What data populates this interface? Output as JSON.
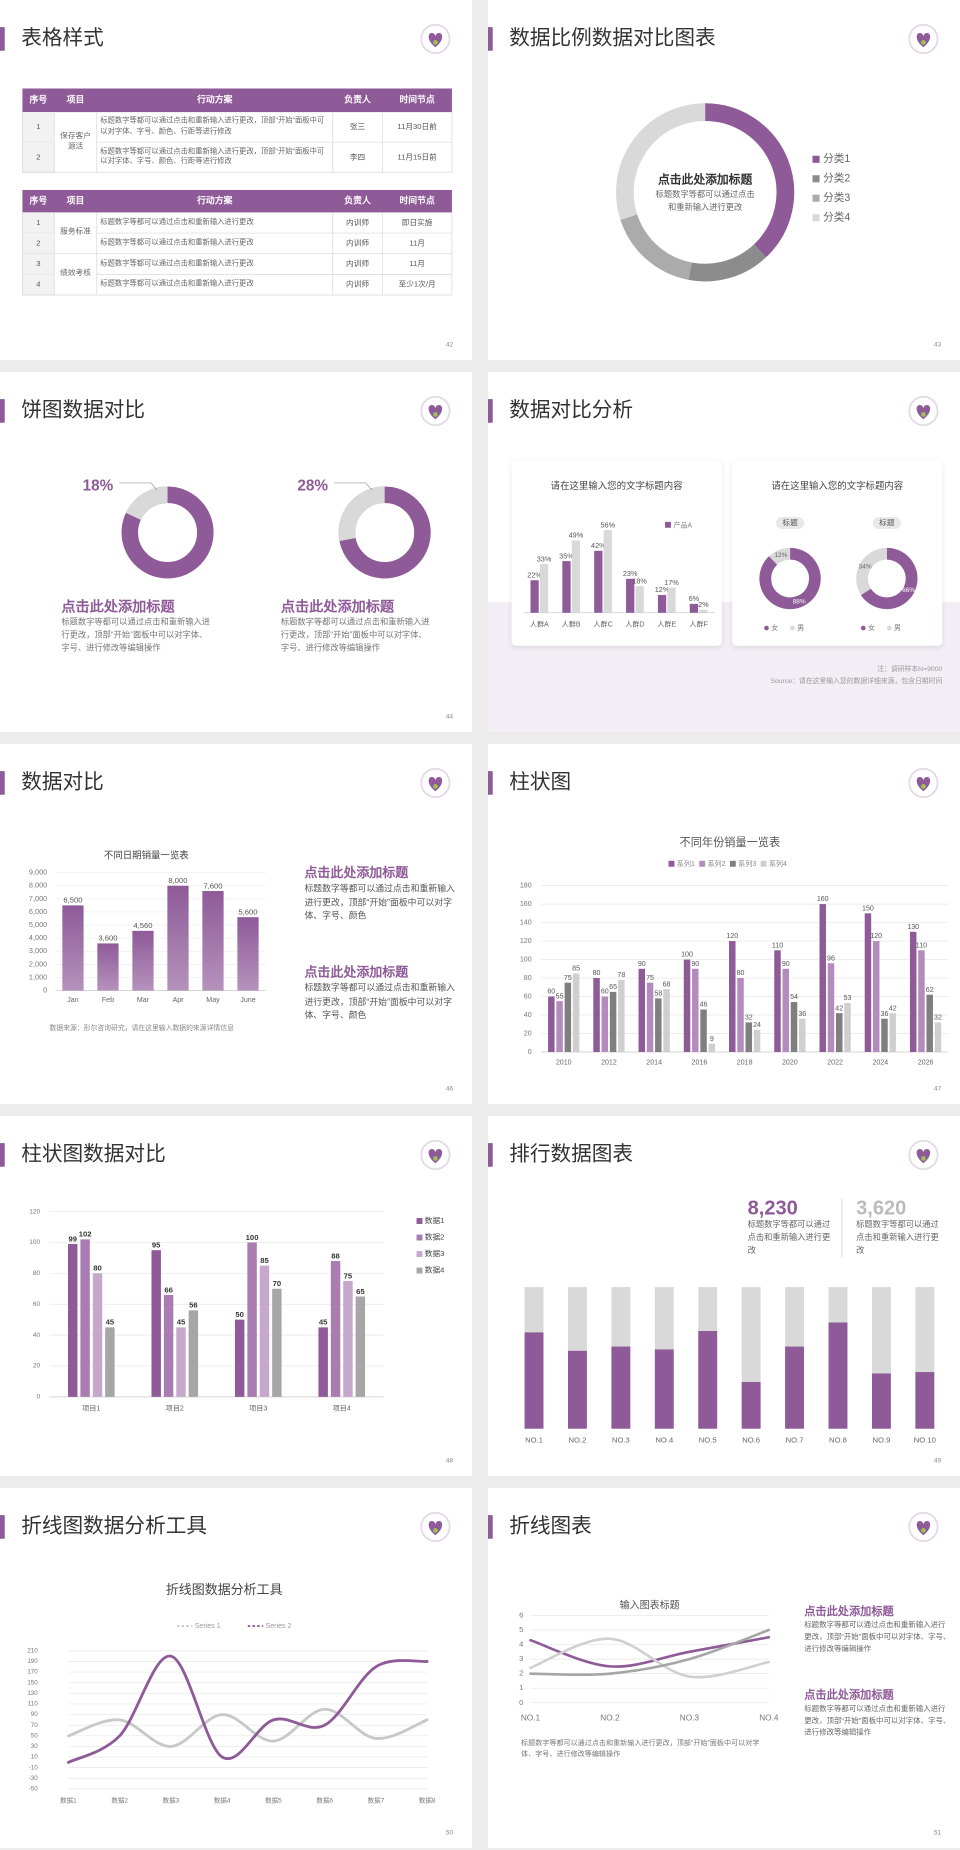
{
  "slides": [
    {
      "title": "表格样式",
      "page": "42",
      "tables": [
        {
          "header": [
            "序号",
            "项目",
            "行动方案",
            "负责人",
            "时间节点"
          ],
          "groups": [
            {
              "project": "保存客户源活",
              "rows": [
                [
                  "1",
                  "标题数字等都可以通过点击和重新输入进行更改，顶部“开始”面板中可以对字体、字号、颜色、行距等进行修改",
                  "张三",
                  "11月30日前"
                ],
                [
                  "2",
                  "标题数字等都可以通过点击和重新输入进行更改，顶部“开始”面板中可以对字体、字号、颜色、行距等进行修改",
                  "李四",
                  "11月15日前"
                ]
              ]
            }
          ]
        },
        {
          "header": [
            "序号",
            "项目",
            "行动方案",
            "负责人",
            "时间节点"
          ],
          "groups": [
            {
              "project": "服务标准",
              "rows": [
                [
                  "1",
                  "标题数字等都可以通过点击和重新输入进行更改",
                  "内训师",
                  "即日实施"
                ],
                [
                  "2",
                  "标题数字等都可以通过点击和重新输入进行更改",
                  "内训师",
                  "11月"
                ]
              ]
            },
            {
              "project": "绩效考核",
              "rows": [
                [
                  "3",
                  "标题数字等都可以通过点击和重新输入进行更改",
                  "内训师",
                  "11月"
                ],
                [
                  "4",
                  "标题数字等都可以通过点击和重新输入进行更改",
                  "内训师",
                  "至少1次/月"
                ]
              ]
            }
          ]
        }
      ]
    },
    {
      "title": "数据比例数据对比图表",
      "page": "43",
      "chart_data": {
        "type": "donut",
        "center_title": "点击此处添加标题",
        "center_text": "标题数字等都可以通过点击和重新输入进行更改",
        "categories": [
          "分类1",
          "分类2",
          "分类3",
          "分类4"
        ],
        "values": [
          38,
          15,
          17,
          30
        ],
        "colors": [
          "#8e5a98",
          "#8c8c8c",
          "#ababab",
          "#d9d9d9"
        ]
      }
    },
    {
      "title": "饼图数据对比",
      "page": "44",
      "items": [
        {
          "chart_data": {
            "type": "donut",
            "values": [
              18
            ],
            "value_labels": [
              "18%"
            ],
            "color": "#d9d9d9",
            "ring_color": "#8e5a98"
          },
          "heading": "点击此处添加标题",
          "text": "标题数字等都可以通过点击和重新输入进行更改，顶部“开始”面板中可以对字体、字号、进行修改等编辑操作"
        },
        {
          "chart_data": {
            "type": "donut",
            "values": [
              28
            ],
            "value_labels": [
              "28%"
            ],
            "color": "#d9d9d9",
            "ring_color": "#8e5a98"
          },
          "heading": "点击此处添加标题",
          "text": "标题数字等都可以通过点击和重新输入进行更改，顶部“开始”面板中可以对字体、字号、进行修改等编辑操作"
        }
      ]
    },
    {
      "title": "数据对比分析",
      "page": "45",
      "cards": [
        {
          "title": "请在这里输入您的文字标题内容",
          "chart_data": {
            "type": "bar",
            "categories": [
              "人群A",
              "人群B",
              "人群C",
              "人群D",
              "人群E",
              "人群F"
            ],
            "series": [
              {
                "name": "产品A",
                "color": "#8e5a98",
                "values": [
                  22,
                  35,
                  42,
                  23,
                  12,
                  6
                ],
                "value_labels": [
                  "22%",
                  "35%",
                  "42%",
                  "23%",
                  "12%",
                  "6%"
                ]
              },
              {
                "color": "#d9d9d9",
                "values": [
                  33,
                  49,
                  56,
                  18,
                  17,
                  2
                ],
                "value_labels": [
                  "33%",
                  "49%",
                  "56%",
                  "18%",
                  "17%",
                  "2%"
                ]
              }
            ]
          }
        },
        {
          "title": "请在这里输入您的文字标题内容",
          "donuts": [
            {
              "label": "标题",
              "chart_data": {
                "type": "donut",
                "categories": [
                  "女",
                  "男"
                ],
                "values": [
                  88,
                  12
                ],
                "value_labels": [
                  "88%",
                  "12%"
                ],
                "colors": [
                  "#8e5a98",
                  "#d9d9d9"
                ]
              }
            },
            {
              "label": "标题",
              "chart_data": {
                "type": "donut",
                "categories": [
                  "女",
                  "男"
                ],
                "values": [
                  66,
                  34
                ],
                "value_labels": [
                  "66%",
                  "34%"
                ],
                "colors": [
                  "#8e5a98",
                  "#d9d9d9"
                ]
              }
            }
          ]
        }
      ],
      "notes": [
        "注：调研样本N=9000",
        "Source：请在这里输入您的数据详细来源，包含日期时间"
      ]
    },
    {
      "title": "数据对比",
      "page": "46",
      "chart_data": {
        "type": "bar",
        "title": "不同日期销量一览表",
        "categories": [
          "Jan",
          "Feb",
          "Mar",
          "Apr",
          "May",
          "June"
        ],
        "values": [
          6500,
          3600,
          4560,
          8000,
          7600,
          5600
        ],
        "value_labels": [
          "6,500",
          "3,600",
          "4,560",
          "8,000",
          "7,600",
          "5,600"
        ],
        "color": "#8e5a98",
        "ylim": [
          0,
          9000
        ],
        "yticks": [
          0,
          {
            "value": 1000,
            "label": "1,000"
          },
          {
            "value": 2000,
            "label": "2,000"
          },
          {
            "value": 3000,
            "label": "3,000"
          },
          {
            "value": 4000,
            "label": "4,000"
          },
          {
            "value": 5000,
            "label": "5,000"
          },
          {
            "value": 6000,
            "label": "6,000"
          },
          {
            "value": 7000,
            "label": "7,000"
          },
          {
            "value": 8000,
            "label": "8,000"
          },
          {
            "value": 9000,
            "label": "9,000"
          }
        ]
      },
      "note": "数据来源：形尔咨询研究，请在这里输入数据的来源详情信息",
      "blocks": [
        {
          "heading": "点击此处添加标题",
          "text": "标题数字等都可以通过点击和重新输入进行更改，顶部“开始”面板中可以对字体、字号、颜色"
        },
        {
          "heading": "点击此处添加标题",
          "text": "标题数字等都可以通过点击和重新输入进行更改，顶部“开始”面板中可以对字体、字号、颜色"
        }
      ]
    },
    {
      "title": "柱状图",
      "page": "47",
      "chart_data": {
        "type": "bar",
        "title": "不同年份销量一览表",
        "categories": [
          "2010",
          "2012",
          "2014",
          "2016",
          "2018",
          "2020",
          "2022",
          "2024",
          "2026"
        ],
        "series": [
          {
            "name": "系列1",
            "color": "#8e5a98",
            "values": [
              60,
              80,
              90,
              100,
              120,
              110,
              160,
              150,
              130
            ]
          },
          {
            "name": "系列2",
            "color": "#b48bbd",
            "values": [
              55,
              60,
              75,
              90,
              80,
              90,
              96,
              120,
              110
            ]
          },
          {
            "name": "系列3",
            "color": "#7f7f7f",
            "values": [
              75,
              65,
              58,
              46,
              32,
              54,
              42,
              36,
              62
            ]
          },
          {
            "name": "系列4",
            "color": "#cfcfcf",
            "values": [
              85,
              78,
              68,
              9,
              24,
              36,
              53,
              42,
              32
            ]
          }
        ],
        "ylim": [
          0,
          180
        ],
        "yticks": [
          0,
          20,
          40,
          60,
          80,
          100,
          120,
          140,
          160,
          180
        ],
        "grid": true
      }
    },
    {
      "title": "柱状图数据对比",
      "page": "48",
      "chart_data": {
        "type": "bar",
        "categories": [
          "项目1",
          "项目2",
          "项目3",
          "项目4"
        ],
        "series": [
          {
            "name": "数据1",
            "color": "#8e5a98",
            "values": [
              99,
              95,
              50,
              45
            ]
          },
          {
            "name": "数据2",
            "color": "#a97db2",
            "values": [
              102,
              66,
              100,
              88
            ]
          },
          {
            "name": "数据3",
            "color": "#c6a8cd",
            "values": [
              80,
              45,
              85,
              75
            ]
          },
          {
            "name": "数据4",
            "color": "#a6a6a6",
            "values": [
              45,
              56,
              70,
              65
            ]
          }
        ],
        "ylim": [
          0,
          120
        ],
        "yticks": [
          0,
          20,
          40,
          60,
          80,
          100,
          120
        ],
        "grid": true
      }
    },
    {
      "title": "排行数据图表",
      "page": "49",
      "stats": [
        {
          "value": "8,230",
          "text": "标题数字等都可以通过点击和重新输入进行更改"
        },
        {
          "value": "3,620",
          "text": "标题数字等都可以通过点击和重新输入进行更改"
        }
      ],
      "chart_data": {
        "type": "stacked_bar",
        "categories": [
          "NO.1",
          "NO.2",
          "NO.3",
          "NO.4",
          "NO.5",
          "NO.6",
          "NO.7",
          "NO.8",
          "NO.9",
          "NO.10"
        ],
        "values": [
          68,
          55,
          58,
          56,
          69,
          33,
          58,
          75,
          39,
          40
        ],
        "color": "#8e5a98",
        "background": "#d9d9d9",
        "ylim": [
          0,
          100
        ]
      }
    },
    {
      "title": "折线图数据分析工具",
      "page": "50",
      "chart_data": {
        "type": "line",
        "title": "折线图数据分析工具",
        "categories": [
          "数据1",
          "数据2",
          "数据3",
          "数据4",
          "数据5",
          "数据6",
          "数据7",
          "数据8"
        ],
        "series": [
          {
            "name": "Series 1",
            "color": "#c8c8c8",
            "values": [
              50,
              80,
              30,
              90,
              40,
              100,
              45,
              80
            ]
          },
          {
            "name": "Series 2",
            "color": "#8e5a98",
            "values": [
              0,
              50,
              200,
              10,
              80,
              70,
              180,
              190
            ]
          }
        ],
        "ylim": [
          -50,
          210
        ],
        "yticks": [
          -50,
          -30,
          -10,
          10,
          30,
          50,
          70,
          90,
          110,
          130,
          150,
          170,
          190,
          210
        ],
        "grid": true,
        "smooth": true
      }
    },
    {
      "title": "折线图表",
      "page": "51",
      "chart_data": {
        "type": "line",
        "title": "输入图表标题",
        "categories": [
          "NO.1",
          "NO.2",
          "NO.3",
          "NO.4"
        ],
        "series": [
          {
            "color": "#8e5a98",
            "values": [
              4.3,
              2.5,
              3.5,
              4.5
            ]
          },
          {
            "color": "#d0d0d0",
            "values": [
              2.4,
              4.4,
              1.8,
              2.8
            ]
          },
          {
            "color": "#a6a6a6",
            "values": [
              2,
              2,
              3,
              5
            ]
          }
        ],
        "ylim": [
          0,
          6
        ],
        "yticks": [
          0,
          1,
          2,
          3,
          4,
          5,
          6
        ],
        "grid": true,
        "smooth": true
      },
      "caption": "标题数字等都可以通过点击和重新输入进行更改，顶部“开始”面板中可以对字体、字号、进行修改等编辑操作",
      "blocks": [
        {
          "heading": "点击此处添加标题",
          "text": "标题数字等都可以通过点击和重新输入进行更改，顶部“开始”面板中可以对字体、字号、进行修改等编辑操作"
        },
        {
          "heading": "点击此处添加标题",
          "text": "标题数字等都可以通过点击和重新输入进行更改，顶部“开始”面板中可以对字体、字号、进行修改等编辑操作"
        }
      ]
    }
  ]
}
